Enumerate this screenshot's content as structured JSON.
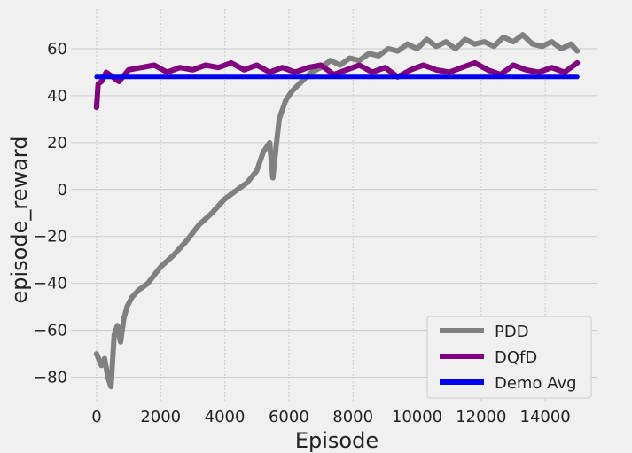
{
  "chart_data": {
    "type": "line",
    "title": "",
    "xlabel": "Episode",
    "ylabel": "episode_reward",
    "xlim": [
      -800,
      15600
    ],
    "ylim": [
      -90,
      77
    ],
    "grid": true,
    "legend_position": "bottom-right",
    "x_ticks": [
      0,
      2000,
      4000,
      6000,
      8000,
      10000,
      12000,
      14000
    ],
    "y_ticks": [
      -80,
      -60,
      -40,
      -20,
      0,
      20,
      40,
      60
    ],
    "x_tick_labels": [
      "0",
      "2000",
      "4000",
      "6000",
      "8000",
      "10000",
      "12000",
      "14000"
    ],
    "y_tick_labels": [
      "−80",
      "−60",
      "−40",
      "−20",
      "0",
      "20",
      "40",
      "60"
    ],
    "series": [
      {
        "name": "PDD",
        "color": "#808080",
        "x": [
          0,
          150,
          250,
          350,
          450,
          550,
          650,
          750,
          850,
          950,
          1100,
          1300,
          1600,
          2000,
          2400,
          2800,
          3200,
          3600,
          4000,
          4400,
          4700,
          5000,
          5200,
          5400,
          5500,
          5600,
          5700,
          5900,
          6100,
          6400,
          6700,
          7000,
          7300,
          7600,
          7900,
          8200,
          8500,
          8800,
          9100,
          9400,
          9700,
          10000,
          10300,
          10600,
          10900,
          11200,
          11500,
          11800,
          12100,
          12400,
          12700,
          13000,
          13300,
          13600,
          13900,
          14200,
          14500,
          14800,
          15000
        ],
        "y": [
          -70,
          -75,
          -72,
          -80,
          -84,
          -62,
          -58,
          -65,
          -55,
          -50,
          -46,
          -43,
          -40,
          -33,
          -28,
          -22,
          -15,
          -10,
          -4,
          0,
          3,
          8,
          16,
          20,
          5,
          18,
          30,
          38,
          42,
          46,
          50,
          52,
          55,
          53,
          56,
          55,
          58,
          57,
          60,
          59,
          62,
          60,
          64,
          61,
          63,
          60,
          64,
          62,
          63,
          61,
          65,
          63,
          66,
          62,
          61,
          63,
          60,
          62,
          59
        ]
      },
      {
        "name": "DQfD",
        "color": "#800080",
        "x": [
          0,
          50,
          150,
          300,
          500,
          700,
          1000,
          1400,
          1800,
          2200,
          2600,
          3000,
          3400,
          3800,
          4200,
          4600,
          5000,
          5400,
          5800,
          6200,
          6600,
          7000,
          7400,
          7800,
          8200,
          8600,
          9000,
          9400,
          9800,
          10200,
          10600,
          11000,
          11400,
          11800,
          12200,
          12600,
          13000,
          13400,
          13800,
          14200,
          14600,
          15000
        ],
        "y": [
          35,
          45,
          46,
          50,
          48,
          46,
          51,
          52,
          53,
          50,
          52,
          51,
          53,
          52,
          54,
          51,
          53,
          50,
          52,
          50,
          52,
          53,
          49,
          51,
          53,
          50,
          52,
          48,
          51,
          53,
          51,
          50,
          52,
          54,
          51,
          49,
          53,
          51,
          50,
          52,
          50,
          54
        ]
      },
      {
        "name": "Demo Avg",
        "color": "#0000ee",
        "x": [
          0,
          15000
        ],
        "y": [
          48,
          48
        ]
      }
    ]
  }
}
